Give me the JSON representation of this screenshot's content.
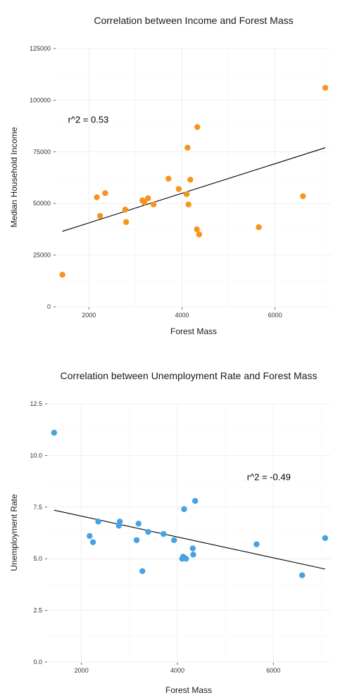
{
  "chart_data": [
    {
      "type": "scatter",
      "title": "Correlation between Income and Forest Mass",
      "xlabel": "Forest Mass",
      "ylabel": "Median Household Income",
      "xlim": [
        1300,
        7200
      ],
      "ylim": [
        0,
        125000
      ],
      "x_ticks": [
        2000,
        4000,
        6000
      ],
      "x_tick_labels": [
        "2000",
        "4000",
        "6000"
      ],
      "y_ticks": [
        0,
        25000,
        50000,
        75000,
        100000,
        125000
      ],
      "y_tick_labels": [
        "0",
        "25000",
        "50000",
        "75000",
        "100000",
        "125000"
      ],
      "annotation": "r^2 = 0.53",
      "annotation_pos": {
        "x": 1550,
        "y": 89000
      },
      "color": "#F7941D",
      "grid": true,
      "trendline": {
        "x": [
          1430,
          7080
        ],
        "y": [
          36500,
          77000
        ]
      },
      "points": [
        {
          "x": 1430,
          "y": 15500
        },
        {
          "x": 2170,
          "y": 53000
        },
        {
          "x": 2240,
          "y": 44000
        },
        {
          "x": 2350,
          "y": 55000
        },
        {
          "x": 2780,
          "y": 47000
        },
        {
          "x": 2800,
          "y": 41000
        },
        {
          "x": 3150,
          "y": 51500
        },
        {
          "x": 3190,
          "y": 50500
        },
        {
          "x": 3270,
          "y": 52500
        },
        {
          "x": 3390,
          "y": 49500
        },
        {
          "x": 3710,
          "y": 62000
        },
        {
          "x": 3930,
          "y": 57000
        },
        {
          "x": 4100,
          "y": 54500
        },
        {
          "x": 4120,
          "y": 77000
        },
        {
          "x": 4140,
          "y": 49500
        },
        {
          "x": 4180,
          "y": 61500
        },
        {
          "x": 4320,
          "y": 37500
        },
        {
          "x": 4330,
          "y": 87000
        },
        {
          "x": 4370,
          "y": 35000
        },
        {
          "x": 5650,
          "y": 38500
        },
        {
          "x": 6600,
          "y": 53500
        },
        {
          "x": 7080,
          "y": 106000
        }
      ]
    },
    {
      "type": "scatter",
      "title": "Correlation between Unemployment Rate and Forest Mass",
      "xlabel": "Forest Mass",
      "ylabel": "Unemployment Rate",
      "xlim": [
        1300,
        7200
      ],
      "ylim": [
        0,
        12.5
      ],
      "x_ticks": [
        2000,
        4000,
        6000
      ],
      "x_tick_labels": [
        "2000",
        "4000",
        "6000"
      ],
      "y_ticks": [
        0,
        2.5,
        5,
        7.5,
        10,
        12.5
      ],
      "y_tick_labels": [
        "0.0",
        "2.5",
        "5.0",
        "7.5",
        "10.0",
        "12.5"
      ],
      "annotation": "r^2 = -0.49",
      "annotation_pos": {
        "x": 5450,
        "y": 8.8
      },
      "color": "#45A3E0",
      "grid": true,
      "trendline": {
        "x": [
          1430,
          7080
        ],
        "y": [
          7.35,
          4.5
        ]
      },
      "points": [
        {
          "x": 1430,
          "y": 11.1
        },
        {
          "x": 2170,
          "y": 6.1
        },
        {
          "x": 2240,
          "y": 5.8
        },
        {
          "x": 2350,
          "y": 6.8
        },
        {
          "x": 2780,
          "y": 6.6
        },
        {
          "x": 2800,
          "y": 6.8
        },
        {
          "x": 3150,
          "y": 5.9
        },
        {
          "x": 3190,
          "y": 6.7
        },
        {
          "x": 3270,
          "y": 4.4
        },
        {
          "x": 3390,
          "y": 6.3
        },
        {
          "x": 3710,
          "y": 6.2
        },
        {
          "x": 3930,
          "y": 5.9
        },
        {
          "x": 4100,
          "y": 5.0
        },
        {
          "x": 4120,
          "y": 5.1
        },
        {
          "x": 4140,
          "y": 7.4
        },
        {
          "x": 4180,
          "y": 5.0
        },
        {
          "x": 4320,
          "y": 5.5
        },
        {
          "x": 4330,
          "y": 5.2
        },
        {
          "x": 4370,
          "y": 7.8
        },
        {
          "x": 5650,
          "y": 5.7
        },
        {
          "x": 6600,
          "y": 4.2
        },
        {
          "x": 7080,
          "y": 6.0
        }
      ]
    }
  ]
}
